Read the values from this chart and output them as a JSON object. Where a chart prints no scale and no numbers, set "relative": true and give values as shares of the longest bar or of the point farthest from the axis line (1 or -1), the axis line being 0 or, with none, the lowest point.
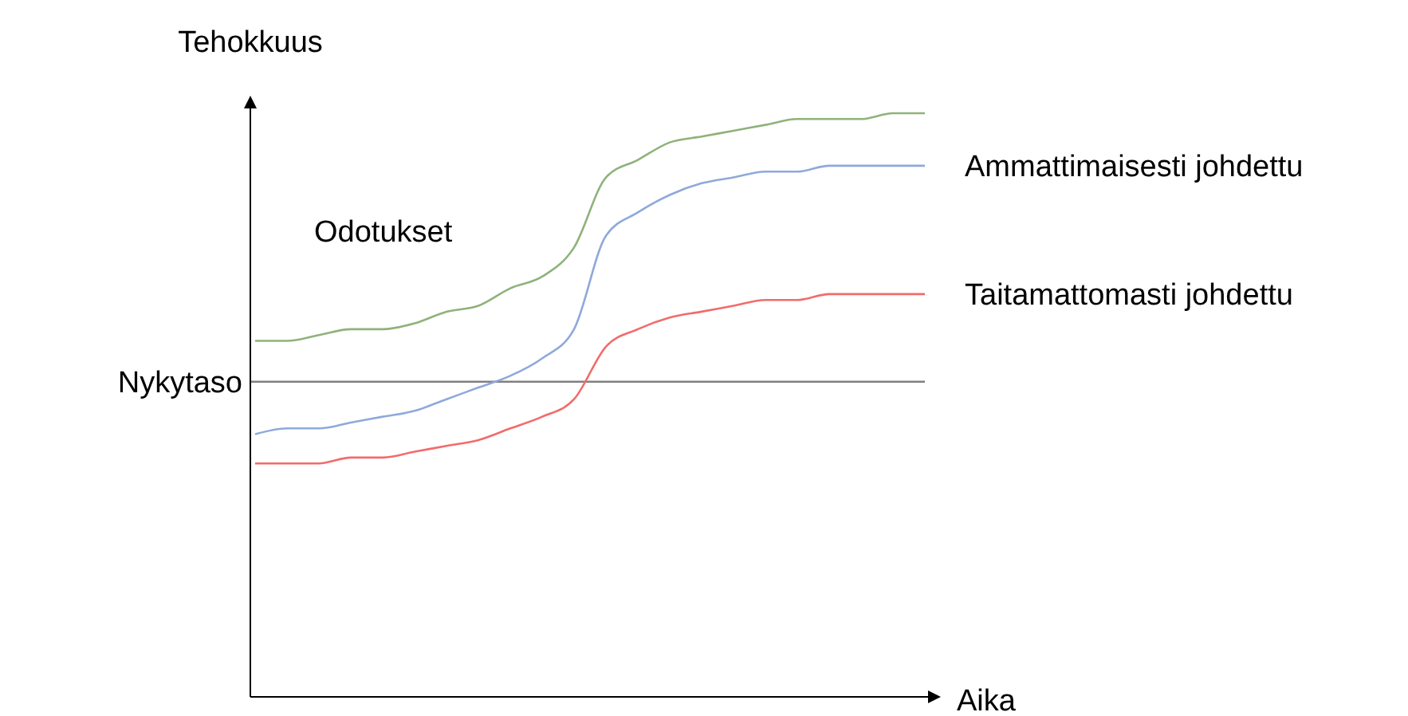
{
  "chart_data": {
    "type": "line",
    "relative": true,
    "xlabel": "Aika",
    "ylabel": "Tehokkuus",
    "categories": [
      null,
      null,
      null,
      null,
      null,
      null,
      null,
      null,
      null,
      null,
      null,
      null,
      null,
      null,
      null,
      null,
      null,
      null,
      null,
      null,
      null,
      null
    ],
    "series": [
      {
        "name": "Odotukset",
        "color": "#8fb27a",
        "values": [
          0.61,
          0.61,
          0.62,
          0.63,
          0.63,
          0.64,
          0.66,
          0.67,
          0.7,
          0.72,
          0.77,
          0.89,
          0.92,
          0.95,
          0.96,
          0.97,
          0.98,
          0.99,
          0.99,
          0.99,
          1.0,
          1.0
        ]
      },
      {
        "name": "Ammattimaisesti johdettu",
        "color": "#8ea9db",
        "values": [
          0.45,
          0.46,
          0.46,
          0.47,
          0.48,
          0.49,
          0.51,
          0.53,
          0.55,
          0.58,
          0.63,
          0.79,
          0.83,
          0.86,
          0.88,
          0.89,
          0.9,
          0.9,
          0.91,
          0.91,
          0.91,
          0.91
        ]
      },
      {
        "name": "Taitamattomasti johdettu",
        "color": "#f26b6b",
        "values": [
          0.4,
          0.4,
          0.4,
          0.41,
          0.41,
          0.42,
          0.43,
          0.44,
          0.46,
          0.48,
          0.51,
          0.6,
          0.63,
          0.65,
          0.66,
          0.67,
          0.68,
          0.68,
          0.69,
          0.69,
          0.69,
          0.69
        ]
      }
    ],
    "ref_lines": [
      {
        "axis": "y",
        "value": 0.54,
        "label": "Nykytaso",
        "color": "#808080"
      }
    ],
    "grid": false,
    "marker": "none",
    "line_style": "solid"
  }
}
